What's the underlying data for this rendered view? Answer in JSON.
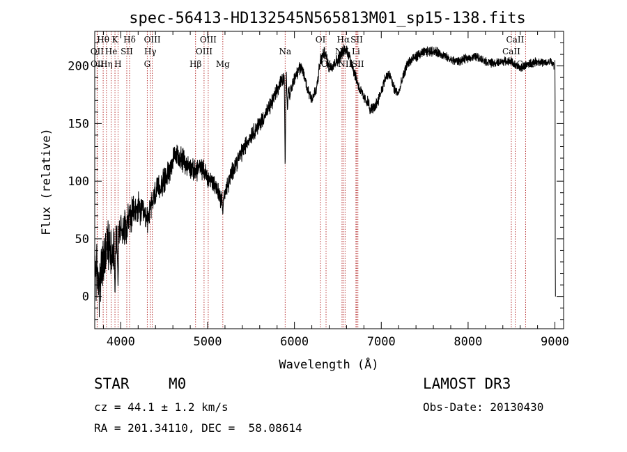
{
  "chart_data": {
    "type": "line",
    "title": "spec-56413-HD132545N565813M01_sp15-138.fits",
    "xlabel": "Wavelength (Å)",
    "ylabel": "Flux (relative)",
    "xlim": [
      3700,
      9100
    ],
    "ylim": [
      -28,
      230
    ],
    "xticks": [
      4000,
      5000,
      6000,
      7000,
      8000,
      9000
    ],
    "yticks": [
      0,
      50,
      100,
      150,
      200
    ],
    "xtick_labels": [
      "4000",
      "5000",
      "6000",
      "7000",
      "8000",
      "9000"
    ],
    "ytick_labels": [
      "0",
      "50",
      "100",
      "150",
      "200"
    ],
    "series": [
      {
        "name": "flux",
        "anchors": [
          [
            3700,
            30
          ],
          [
            3750,
            10
          ],
          [
            3800,
            30
          ],
          [
            3850,
            45
          ],
          [
            3900,
            40
          ],
          [
            3950,
            52
          ],
          [
            4000,
            58
          ],
          [
            4050,
            62
          ],
          [
            4100,
            68
          ],
          [
            4150,
            72
          ],
          [
            4200,
            76
          ],
          [
            4250,
            72
          ],
          [
            4300,
            66
          ],
          [
            4350,
            78
          ],
          [
            4400,
            90
          ],
          [
            4450,
            95
          ],
          [
            4500,
            100
          ],
          [
            4550,
            108
          ],
          [
            4600,
            118
          ],
          [
            4650,
            122
          ],
          [
            4700,
            120
          ],
          [
            4750,
            115
          ],
          [
            4800,
            112
          ],
          [
            4850,
            108
          ],
          [
            4900,
            112
          ],
          [
            4950,
            110
          ],
          [
            5000,
            103
          ],
          [
            5050,
            100
          ],
          [
            5100,
            95
          ],
          [
            5150,
            85
          ],
          [
            5200,
            90
          ],
          [
            5250,
            100
          ],
          [
            5300,
            112
          ],
          [
            5400,
            126
          ],
          [
            5500,
            140
          ],
          [
            5600,
            150
          ],
          [
            5700,
            162
          ],
          [
            5800,
            178
          ],
          [
            5850,
            188
          ],
          [
            5900,
            192
          ],
          [
            5950,
            175
          ],
          [
            6000,
            190
          ],
          [
            6050,
            198
          ],
          [
            6100,
            195
          ],
          [
            6150,
            180
          ],
          [
            6200,
            172
          ],
          [
            6250,
            178
          ],
          [
            6300,
            205
          ],
          [
            6350,
            212
          ],
          [
            6400,
            198
          ],
          [
            6450,
            202
          ],
          [
            6500,
            205
          ],
          [
            6550,
            212
          ],
          [
            6600,
            214
          ],
          [
            6650,
            205
          ],
          [
            6700,
            192
          ],
          [
            6750,
            180
          ],
          [
            6800,
            172
          ],
          [
            6850,
            168
          ],
          [
            6900,
            162
          ],
          [
            6950,
            168
          ],
          [
            7000,
            178
          ],
          [
            7050,
            190
          ],
          [
            7100,
            192
          ],
          [
            7150,
            180
          ],
          [
            7200,
            176
          ],
          [
            7250,
            190
          ],
          [
            7300,
            202
          ],
          [
            7400,
            208
          ],
          [
            7500,
            212
          ],
          [
            7600,
            213
          ],
          [
            7700,
            210
          ],
          [
            7800,
            205
          ],
          [
            7900,
            204
          ],
          [
            8000,
            207
          ],
          [
            8100,
            208
          ],
          [
            8200,
            204
          ],
          [
            8300,
            202
          ],
          [
            8400,
            204
          ],
          [
            8500,
            204
          ],
          [
            8550,
            200
          ],
          [
            8600,
            198
          ],
          [
            8700,
            202
          ],
          [
            8800,
            204
          ],
          [
            8900,
            202
          ],
          [
            8950,
            204
          ],
          [
            8990,
            200
          ]
        ],
        "dips": [
          [
            3933,
            0
          ],
          [
            3968,
            8
          ],
          [
            5175,
            70
          ],
          [
            5893,
            110
          ],
          [
            5920,
            160
          ],
          [
            6870,
            158
          ]
        ],
        "noise": [
          [
            3700,
            22
          ],
          [
            3900,
            16
          ],
          [
            4100,
            12
          ],
          [
            4400,
            9
          ],
          [
            5000,
            7
          ],
          [
            5500,
            6
          ],
          [
            6000,
            5
          ],
          [
            7000,
            4
          ],
          [
            8000,
            3
          ],
          [
            9000,
            3
          ]
        ],
        "tail": [
          [
            9000,
            205
          ],
          [
            9002,
            170
          ],
          [
            9004,
            40
          ],
          [
            9006,
            0
          ]
        ]
      }
    ],
    "lines": [
      {
        "label": "Hθ",
        "wavelength": 3797,
        "row": 1
      },
      {
        "label": "OII",
        "wavelength": 3727,
        "row": 2
      },
      {
        "label": "OII",
        "wavelength": 3729,
        "row": 3
      },
      {
        "label": "Hη",
        "wavelength": 3835,
        "row": 3
      },
      {
        "label": "K",
        "wavelength": 3933,
        "row": 1
      },
      {
        "label": "He",
        "wavelength": 3889,
        "row": 2
      },
      {
        "label": "H",
        "wavelength": 3968,
        "row": 3
      },
      {
        "label": "SII",
        "wavelength": 4069,
        "row": 2
      },
      {
        "label": "Hδ",
        "wavelength": 4101,
        "row": 1
      },
      {
        "label": "OIII",
        "wavelength": 4363,
        "row": 1
      },
      {
        "label": "Hγ",
        "wavelength": 4340,
        "row": 2
      },
      {
        "label": "G",
        "wavelength": 4305,
        "row": 3
      },
      {
        "label": "Hβ",
        "wavelength": 4861,
        "row": 3
      },
      {
        "label": "OIII",
        "wavelength": 5007,
        "row": 1
      },
      {
        "label": "OIII",
        "wavelength": 4959,
        "row": 2
      },
      {
        "label": "Mg",
        "wavelength": 5175,
        "row": 3
      },
      {
        "label": "Na",
        "wavelength": 5893,
        "row": 2
      },
      {
        "label": "OI",
        "wavelength": 6300,
        "row": 1
      },
      {
        "label": "OI",
        "wavelength": 6364,
        "row": 3
      },
      {
        "label": "Hα",
        "wavelength": 6563,
        "row": 1
      },
      {
        "label": "NII",
        "wavelength": 6548,
        "row": 2
      },
      {
        "label": "NII",
        "wavelength": 6583,
        "row": 3
      },
      {
        "label": "SII",
        "wavelength": 6717,
        "row": 1
      },
      {
        "label": "Li",
        "wavelength": 6708,
        "row": 2
      },
      {
        "label": "SII",
        "wavelength": 6731,
        "row": 3
      },
      {
        "label": "CaII",
        "wavelength": 8542,
        "row": 1
      },
      {
        "label": "CaII",
        "wavelength": 8498,
        "row": 2
      },
      {
        "label": "CaII",
        "wavelength": 8662,
        "row": 3
      }
    ],
    "colors": {
      "spectrum": "#000000",
      "marker_line": "#b22222"
    }
  },
  "info": {
    "object_class": "STAR",
    "subclass": "M0",
    "survey": "LAMOST DR3",
    "cz": "cz = 44.1 ± 1.2 km/s",
    "obs_date": "Obs-Date: 20130430",
    "coords": "RA = 201.34110, DEC =  58.08614"
  }
}
